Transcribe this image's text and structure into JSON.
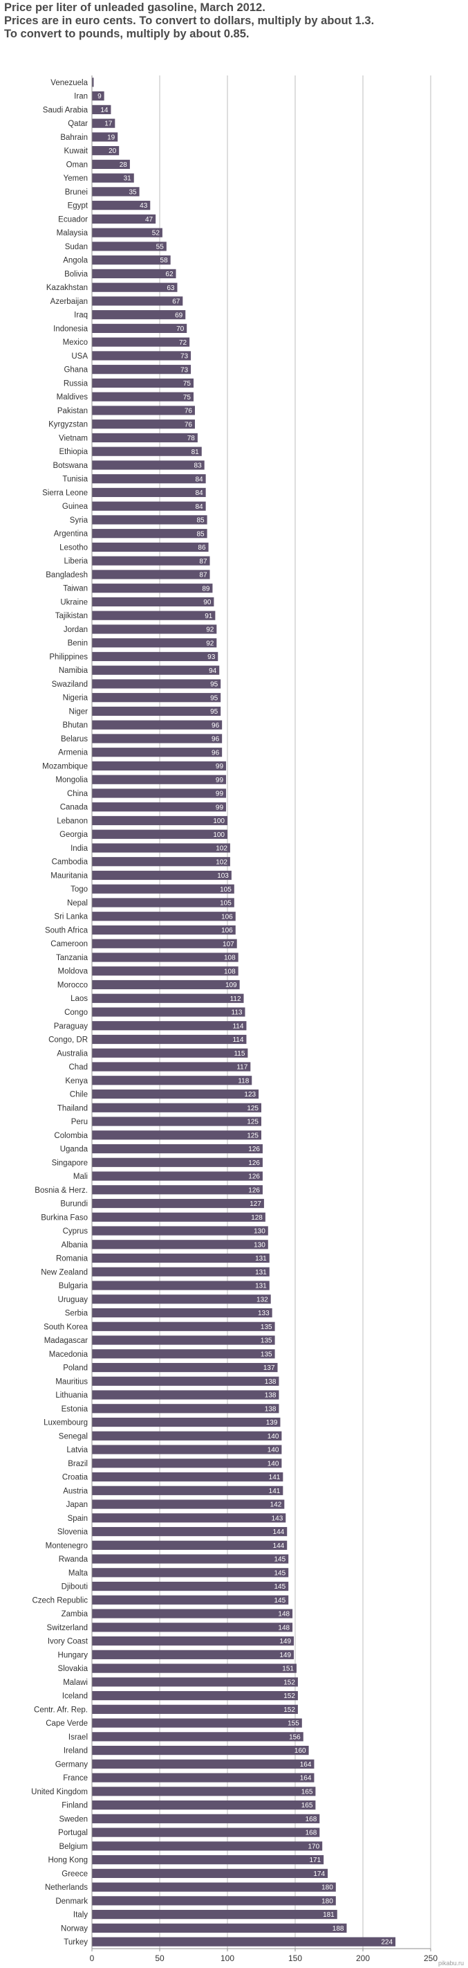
{
  "header": {
    "line1": "Price per liter of unleaded gasoline, March 2012.",
    "line2": "Prices are in euro cents. To convert to dollars, multiply by about 1.3.",
    "line3": "To convert to pounds, multiply by about 0.85."
  },
  "watermark": "pikabu.ru",
  "colors": {
    "bar": "#5f526e",
    "bar_label": "#ffffff",
    "grid": "#bdbdbd",
    "axis": "#8c8c8c",
    "text": "#333333"
  },
  "chart_data": {
    "type": "bar",
    "orientation": "horizontal",
    "title": "Price per liter of unleaded gasoline, March 2012.",
    "xlim": [
      0,
      250
    ],
    "xticks": [
      0,
      50,
      100,
      150,
      200,
      250
    ],
    "grid": true,
    "categories": [
      "Venezuela",
      "Iran",
      "Saudi Arabia",
      "Qatar",
      "Bahrain",
      "Kuwait",
      "Oman",
      "Yemen",
      "Brunei",
      "Egypt",
      "Ecuador",
      "Malaysia",
      "Sudan",
      "Angola",
      "Bolivia",
      "Kazakhstan",
      "Azerbaijan",
      "Iraq",
      "Indonesia",
      "Mexico",
      "USA",
      "Ghana",
      "Russia",
      "Maldives",
      "Pakistan",
      "Kyrgyzstan",
      "Vietnam",
      "Ethiopia",
      "Botswana",
      "Tunisia",
      "Sierra Leone",
      "Guinea",
      "Syria",
      "Argentina",
      "Lesotho",
      "Liberia",
      "Bangladesh",
      "Taiwan",
      "Ukraine",
      "Tajikistan",
      "Jordan",
      "Benin",
      "Philippines",
      "Namibia",
      "Swaziland",
      "Nigeria",
      "Niger",
      "Bhutan",
      "Belarus",
      "Armenia",
      "Mozambique",
      "Mongolia",
      "China",
      "Canada",
      "Lebanon",
      "Georgia",
      "India",
      "Cambodia",
      "Mauritania",
      "Togo",
      "Nepal",
      "Sri Lanka",
      "South Africa",
      "Cameroon",
      "Tanzania",
      "Moldova",
      "Morocco",
      "Laos",
      "Congo",
      "Paraguay",
      "Congo, DR",
      "Australia",
      "Chad",
      "Kenya",
      "Chile",
      "Thailand",
      "Peru",
      "Colombia",
      "Uganda",
      "Singapore",
      "Mali",
      "Bosnia & Herz.",
      "Burundi",
      "Burkina Faso",
      "Cyprus",
      "Albania",
      "Romania",
      "New Zealand",
      "Bulgaria",
      "Uruguay",
      "Serbia",
      "South Korea",
      "Madagascar",
      "Macedonia",
      "Poland",
      "Mauritius",
      "Lithuania",
      "Estonia",
      "Luxembourg",
      "Senegal",
      "Latvia",
      "Brazil",
      "Croatia",
      "Austria",
      "Japan",
      "Spain",
      "Slovenia",
      "Montenegro",
      "Rwanda",
      "Malta",
      "Djibouti",
      "Czech Republic",
      "Zambia",
      "Switzerland",
      "Ivory Coast",
      "Hungary",
      "Slovakia",
      "Malawi",
      "Iceland",
      "Centr. Afr. Rep.",
      "Cape Verde",
      "Israel",
      "Ireland",
      "Germany",
      "France",
      "United Kingdom",
      "Finland",
      "Sweden",
      "Portugal",
      "Belgium",
      "Hong Kong",
      "Greece",
      "Netherlands",
      "Denmark",
      "Italy",
      "Norway",
      "Turkey"
    ],
    "values": [
      1,
      9,
      14,
      17,
      19,
      20,
      28,
      31,
      35,
      43,
      47,
      52,
      55,
      58,
      62,
      63,
      67,
      69,
      70,
      72,
      73,
      73,
      75,
      75,
      76,
      76,
      78,
      81,
      83,
      84,
      84,
      84,
      85,
      85,
      86,
      87,
      87,
      89,
      90,
      91,
      92,
      92,
      93,
      94,
      95,
      95,
      95,
      96,
      96,
      96,
      99,
      99,
      99,
      99,
      100,
      100,
      102,
      102,
      103,
      105,
      105,
      106,
      106,
      107,
      108,
      108,
      109,
      112,
      113,
      114,
      114,
      115,
      117,
      118,
      123,
      125,
      125,
      125,
      126,
      126,
      126,
      126,
      127,
      128,
      130,
      130,
      131,
      131,
      131,
      132,
      133,
      135,
      135,
      135,
      137,
      138,
      138,
      138,
      139,
      140,
      140,
      140,
      141,
      141,
      142,
      143,
      144,
      144,
      145,
      145,
      145,
      145,
      148,
      148,
      149,
      149,
      151,
      152,
      152,
      152,
      155,
      156,
      160,
      164,
      164,
      165,
      165,
      168,
      168,
      170,
      171,
      174,
      180,
      180,
      181,
      188,
      224
    ],
    "value_labels": [
      "",
      "9",
      "14",
      "17",
      "19",
      "20",
      "28",
      "31",
      "35",
      "43",
      "47",
      "52",
      "55",
      "58",
      "62",
      "63",
      "67",
      "69",
      "70",
      "72",
      "73",
      "73",
      "75",
      "75",
      "76",
      "76",
      "78",
      "81",
      "83",
      "84",
      "84",
      "84",
      "85",
      "85",
      "86",
      "87",
      "87",
      "89",
      "90",
      "91",
      "92",
      "92",
      "93",
      "94",
      "95",
      "95",
      "95",
      "96",
      "96",
      "96",
      "99",
      "99",
      "99",
      "99",
      "100",
      "100",
      "102",
      "102",
      "103",
      "105",
      "105",
      "106",
      "106",
      "107",
      "108",
      "108",
      "109",
      "112",
      "113",
      "114",
      "114",
      "115",
      "117",
      "118",
      "123",
      "125",
      "125",
      "125",
      "126",
      "126",
      "126",
      "126",
      "127",
      "128",
      "130",
      "130",
      "131",
      "131",
      "131",
      "132",
      "133",
      "135",
      "135",
      "135",
      "137",
      "138",
      "138",
      "138",
      "139",
      "140",
      "140",
      "140",
      "141",
      "141",
      "142",
      "143",
      "144",
      "144",
      "145",
      "145",
      "145",
      "145",
      "148",
      "148",
      "149",
      "149",
      "151",
      "152",
      "152",
      "152",
      "155",
      "156",
      "160",
      "164",
      "164",
      "165",
      "165",
      "168",
      "168",
      "170",
      "171",
      "174",
      "180",
      "180",
      "181",
      "188",
      "224"
    ]
  }
}
